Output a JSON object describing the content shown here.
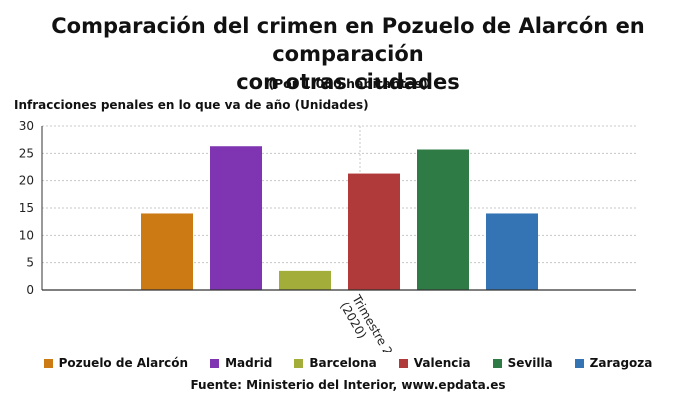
{
  "title_lines": [
    "Comparación del crimen en Pozuelo de Alarcón en comparación",
    "con otras ciudades"
  ],
  "subtitle": "(Por 1.000 habitantes)",
  "source": "Fuente: Ministerio del Interior, www.epdata.es",
  "chart_data": {
    "type": "bar",
    "title": "Comparación del crimen en Pozuelo de Alarcón en comparación con otras ciudades",
    "subtitle": "(Por 1.000 habitantes)",
    "ylabel": "Infracciones penales en lo que va de año (Unidades)",
    "xlabel": "",
    "categories": [
      "Trimestre 2 (2020)"
    ],
    "category_label_lines": [
      "Trimestre 2",
      "(2020)"
    ],
    "ylim": [
      0,
      30
    ],
    "yticks": [
      0,
      5,
      10,
      15,
      20,
      25,
      30
    ],
    "grid": true,
    "legend_position": "bottom",
    "series": [
      {
        "name": "Pozuelo de Alarcón",
        "values": [
          14.0
        ],
        "color": "#cc7a14"
      },
      {
        "name": "Madrid",
        "values": [
          26.3
        ],
        "color": "#7f35b2"
      },
      {
        "name": "Barcelona",
        "values": [
          3.5
        ],
        "color": "#a3ae3a"
      },
      {
        "name": "Valencia",
        "values": [
          21.3
        ],
        "color": "#b03a3a"
      },
      {
        "name": "Sevilla",
        "values": [
          25.7
        ],
        "color": "#2e7b45"
      },
      {
        "name": "Zaragoza",
        "values": [
          14.0
        ],
        "color": "#3474b4"
      }
    ]
  }
}
